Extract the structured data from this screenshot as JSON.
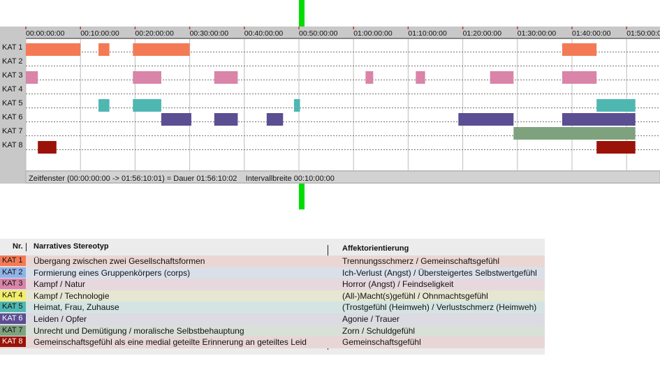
{
  "timeline": {
    "status_text": "Zeitfenster (00:00:00:00 -> 01:56:10:01) = Dauer 01:56:10:02    Intervallbreite 00:10:00:00",
    "colors": {
      "marker": "#00dd00",
      "panel": "#c8c8c8",
      "track": "#ffffff"
    }
  },
  "legend": {
    "header_nr": "Nr.",
    "header_stereotyp": "Narratives Stereotyp",
    "header_affekt": "Affektorientierung",
    "rows": [
      {
        "nr": "KAT 1",
        "stereotyp": "Übergang zwischen zwei Gesellschaftsformen",
        "affekt": "Trennungsschmerz / Gemeinschaftsgefühl",
        "color": "#f47a55",
        "row_bg": "#ead7d3"
      },
      {
        "nr": "KAT 2",
        "stereotyp": "Formierung eines Gruppenkörpers (corps)",
        "affekt": "Ich-Verlust (Angst) / Übersteigertes Selbstwertgefühl",
        "color": "#8fb4e8",
        "row_bg": "#d9e0ea"
      },
      {
        "nr": "KAT 3",
        "stereotyp": "Kampf / Natur",
        "affekt": "Horror (Angst) / Feindseligkeit",
        "color": "#d984a8",
        "row_bg": "#e7d8dd"
      },
      {
        "nr": "KAT 4",
        "stereotyp": "Kampf / Technologie",
        "affekt": "(All-)Macht(s)gefühl / Ohnmachtsgefühl",
        "color": "#f2ee6a",
        "row_bg": "#e6e6d2"
      },
      {
        "nr": "KAT 5",
        "stereotyp": "Heimat, Frau, Zuhause",
        "affekt": "(Trostgefühl (Heimweh) / Verlustschmerz (Heimweh)",
        "color": "#4fb7b2",
        "row_bg": "#d3e4e2"
      },
      {
        "nr": "KAT 6",
        "stereotyp": "Leiden / Opfer",
        "affekt": "Agonie / Trauer",
        "color": "#5c4e92",
        "row_bg": "#dcdae3"
      },
      {
        "nr": "KAT 7",
        "stereotyp": "Unrecht und Demütigung / moralische Selbstbehauptung",
        "affekt": "Zorn / Schuldgefühl",
        "color": "#7fa27e",
        "row_bg": "#d9e0d8"
      },
      {
        "nr": "KAT 8",
        "stereotyp": "Gemeinschaftsgefühl als eine medial geteilte Erinnerung an geteiltes Leid",
        "affekt": "Gemeinschaftsgefühl",
        "color": "#9a1208",
        "row_bg": "#e8d6d6"
      }
    ]
  },
  "chart_data": {
    "type": "timeline",
    "x_unit": "minutes",
    "xlim": [
      0,
      110
    ],
    "x_ticks": [
      "00:00:00:00",
      "00:10:00:00",
      "00:20:00:00",
      "00:30:00:00",
      "00:40:00:00",
      "00:50:00:00",
      "01:00:00:00",
      "01:10:00:00",
      "01:20:00:00",
      "01:30:00:00",
      "01:40:00:00",
      "01:50:00:00"
    ],
    "categories": [
      "KAT 1",
      "KAT 2",
      "KAT 3",
      "KAT 4",
      "KAT 5",
      "KAT 6",
      "KAT 7",
      "KAT 8"
    ],
    "series": [
      {
        "category": "KAT 1",
        "color": "#f47a55",
        "segments": [
          [
            0,
            10
          ],
          [
            13.3,
            15.3
          ],
          [
            19.6,
            30
          ],
          [
            98.2,
            104.5
          ]
        ]
      },
      {
        "category": "KAT 2",
        "color": "#8fb4e8",
        "segments": []
      },
      {
        "category": "KAT 3",
        "color": "#d984a8",
        "segments": [
          [
            0,
            2.2
          ],
          [
            19.6,
            24.8
          ],
          [
            34.5,
            38.8
          ],
          [
            62.2,
            63.6
          ],
          [
            71.4,
            73.1
          ],
          [
            85,
            89.3
          ],
          [
            98.2,
            104.5
          ]
        ]
      },
      {
        "category": "KAT 4",
        "color": "#f2ee6a",
        "segments": []
      },
      {
        "category": "KAT 5",
        "color": "#4fb7b2",
        "segments": [
          [
            13.3,
            15.3
          ],
          [
            19.6,
            24.8
          ],
          [
            49.1,
            50.2
          ],
          [
            104.5,
            111.6
          ]
        ]
      },
      {
        "category": "KAT 6",
        "color": "#5c4e92",
        "segments": [
          [
            24.8,
            30.3
          ],
          [
            34.5,
            38.8
          ],
          [
            44.1,
            47.1
          ],
          [
            79.2,
            89.3
          ],
          [
            98.2,
            111.6
          ]
        ]
      },
      {
        "category": "KAT 7",
        "color": "#7fa27e",
        "segments": [
          [
            89.3,
            111.6
          ]
        ]
      },
      {
        "category": "KAT 8",
        "color": "#9a1208",
        "segments": [
          [
            2.2,
            5.6
          ],
          [
            104.5,
            111.6
          ]
        ]
      }
    ]
  }
}
